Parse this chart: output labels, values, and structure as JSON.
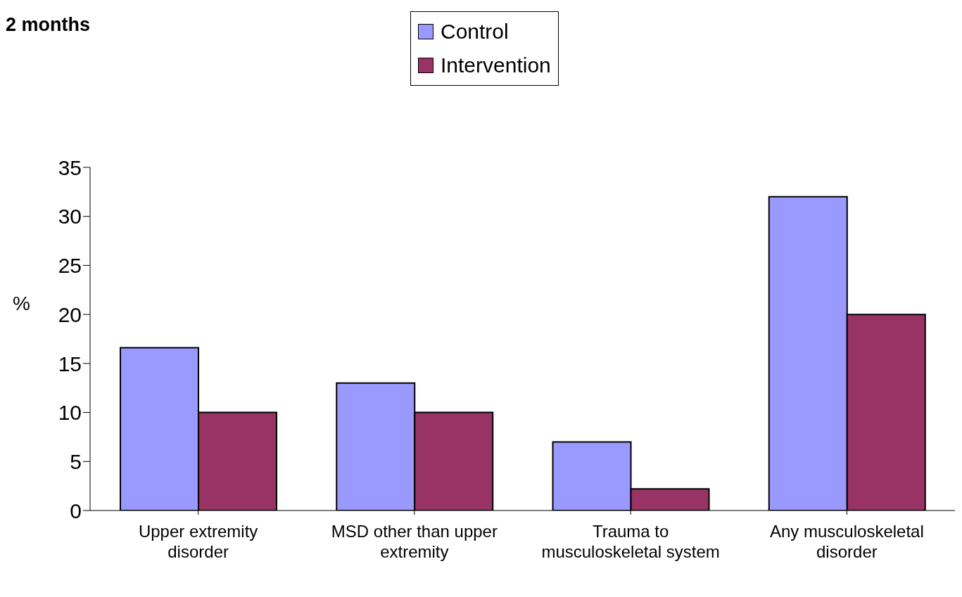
{
  "chart_data": {
    "type": "bar",
    "title": "2 months",
    "ylabel": "%",
    "categories": [
      "Upper extremity disorder",
      "MSD other than upper extremity",
      "Trauma to musculoskeletal system",
      "Any musculoskeletal disorder"
    ],
    "series": [
      {
        "name": "Control",
        "color": "#9999ff",
        "values": [
          16.6,
          13,
          7,
          32
        ]
      },
      {
        "name": "Intervention",
        "color": "#993366",
        "values": [
          10,
          10,
          2.2,
          20
        ]
      }
    ],
    "ylim": [
      0,
      35
    ],
    "yticks": [
      0,
      5,
      10,
      15,
      20,
      25,
      30,
      35
    ],
    "grid": false,
    "legend": "top"
  }
}
